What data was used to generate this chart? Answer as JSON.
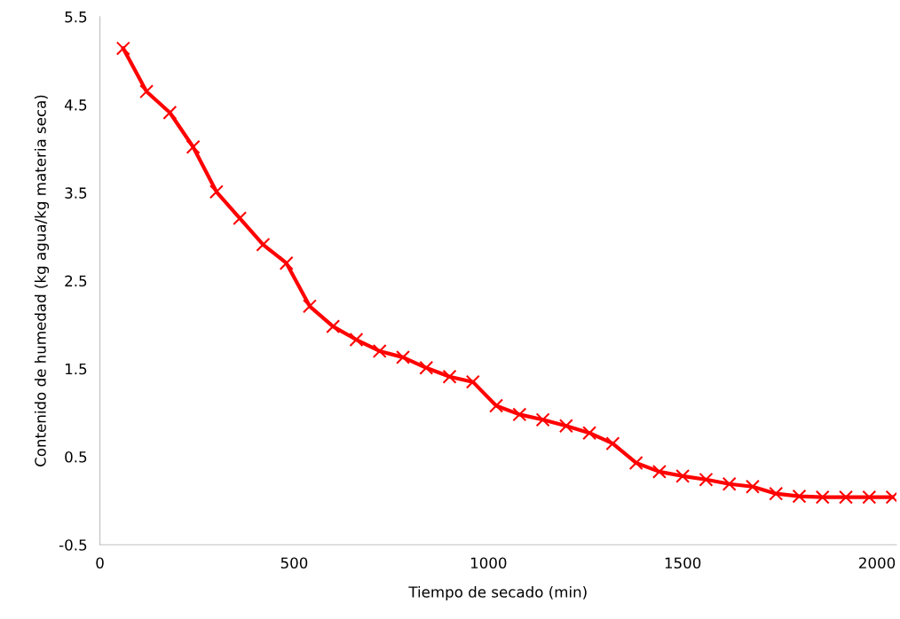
{
  "chart_data": {
    "type": "line",
    "xlabel": "Tiempo de secado (min)",
    "ylabel": "Contenido de humedad (kg agua/kg materia seca)",
    "xlim": [
      0,
      2050
    ],
    "xticks": [
      0,
      500,
      1000,
      1500,
      2000
    ],
    "ylim": [
      -0.5,
      5.5
    ],
    "yticks": [
      -0.5,
      0.5,
      1.5,
      2.5,
      3.5,
      4.5,
      5.5
    ],
    "grid": false,
    "marker": "cross",
    "line_style": "solid",
    "x": [
      60,
      120,
      180,
      240,
      300,
      360,
      420,
      480,
      540,
      600,
      660,
      720,
      780,
      840,
      900,
      960,
      1020,
      1080,
      1140,
      1200,
      1260,
      1320,
      1380,
      1440,
      1500,
      1560,
      1620,
      1680,
      1740,
      1800,
      1860,
      1920,
      1980,
      2040
    ],
    "series": [
      {
        "color": "#ff0000",
        "values": [
          5.14,
          4.65,
          4.41,
          4.02,
          3.51,
          3.21,
          2.91,
          2.7,
          2.21,
          1.98,
          1.83,
          1.7,
          1.63,
          1.51,
          1.41,
          1.35,
          1.08,
          0.98,
          0.92,
          0.85,
          0.77,
          0.65,
          0.43,
          0.33,
          0.28,
          0.24,
          0.19,
          0.16,
          0.08,
          0.05,
          0.04,
          0.04,
          0.04,
          0.04
        ]
      }
    ]
  }
}
